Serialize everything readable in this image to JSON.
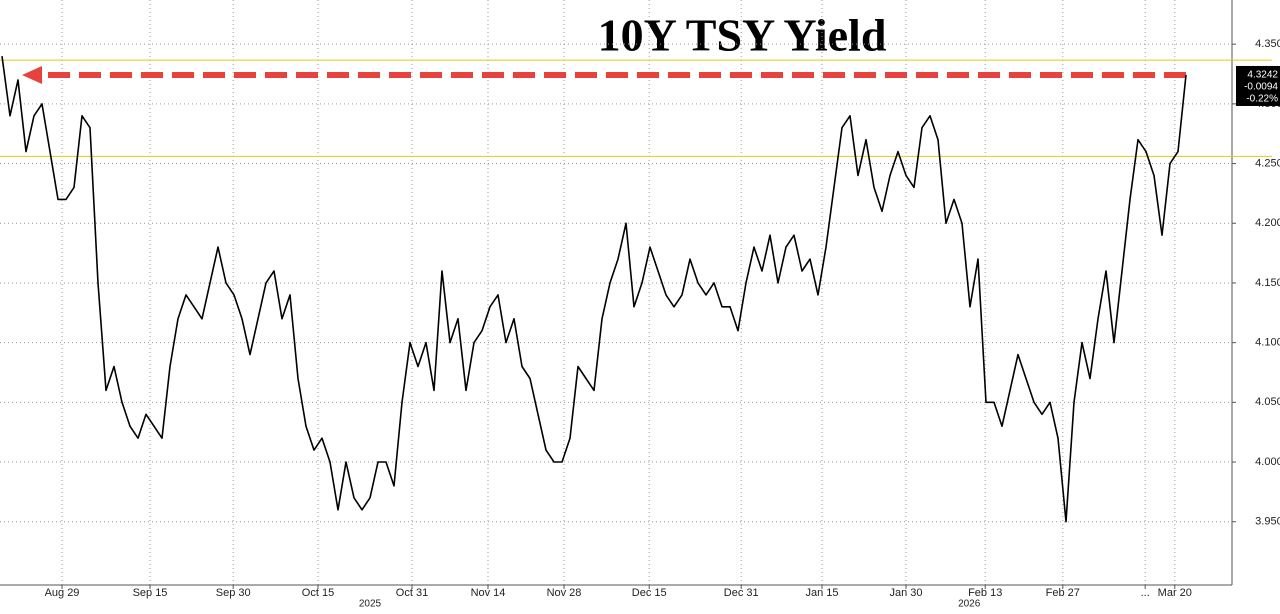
{
  "chart_data": {
    "type": "line",
    "title": "10Y TSY Yield",
    "color": "#000000",
    "values": [
      4.34,
      4.29,
      4.32,
      4.26,
      4.29,
      4.3,
      4.26,
      4.22,
      4.22,
      4.23,
      4.29,
      4.28,
      4.15,
      4.06,
      4.08,
      4.05,
      4.03,
      4.02,
      4.04,
      4.03,
      4.02,
      4.08,
      4.12,
      4.14,
      4.13,
      4.12,
      4.15,
      4.18,
      4.15,
      4.14,
      4.12,
      4.09,
      4.12,
      4.15,
      4.16,
      4.12,
      4.14,
      4.07,
      4.03,
      4.01,
      4.02,
      4.0,
      3.96,
      4.0,
      3.97,
      3.96,
      3.97,
      4.0,
      4.0,
      3.98,
      4.05,
      4.1,
      4.08,
      4.1,
      4.06,
      4.16,
      4.1,
      4.12,
      4.06,
      4.1,
      4.11,
      4.13,
      4.14,
      4.1,
      4.12,
      4.08,
      4.07,
      4.04,
      4.01,
      4.0,
      4.0,
      4.02,
      4.08,
      4.07,
      4.06,
      4.12,
      4.15,
      4.17,
      4.2,
      4.13,
      4.15,
      4.18,
      4.16,
      4.14,
      4.13,
      4.14,
      4.17,
      4.15,
      4.14,
      4.15,
      4.13,
      4.13,
      4.11,
      4.15,
      4.18,
      4.16,
      4.19,
      4.15,
      4.18,
      4.19,
      4.16,
      4.17,
      4.14,
      4.18,
      4.23,
      4.28,
      4.29,
      4.24,
      4.27,
      4.23,
      4.21,
      4.24,
      4.26,
      4.24,
      4.23,
      4.28,
      4.29,
      4.27,
      4.2,
      4.22,
      4.2,
      4.13,
      4.17,
      4.05,
      4.05,
      4.03,
      4.06,
      4.09,
      4.07,
      4.05,
      4.04,
      4.05,
      4.02,
      3.95,
      4.05,
      4.1,
      4.07,
      4.12,
      4.16,
      4.1,
      4.16,
      4.22,
      4.27,
      4.26,
      4.24,
      4.19,
      4.25,
      4.26,
      4.3242
    ],
    "xlim": [
      -0.25,
      153.75
    ],
    "xticks": [
      {
        "value": 7.5,
        "label": "Aug 29"
      },
      {
        "value": 18.5,
        "label": "Sep 15"
      },
      {
        "value": 28.9,
        "label": "Sep 30"
      },
      {
        "value": 39.5,
        "label": "Oct 15"
      },
      {
        "value": 51.25,
        "label": "Oct 31"
      },
      {
        "value": 60.75,
        "label": "Nov 14"
      },
      {
        "value": 70.25,
        "label": "Nov 28"
      },
      {
        "value": 80.9,
        "label": "Dec 15"
      },
      {
        "value": 92.4,
        "label": "Dec 31"
      },
      {
        "value": 102.5,
        "label": "Jan 15"
      },
      {
        "value": 113,
        "label": "Jan 30"
      },
      {
        "value": 122.9,
        "label": "Feb 13"
      },
      {
        "value": 132.6,
        "label": "Feb 27"
      },
      {
        "value": 142.9,
        "label": "..."
      },
      {
        "value": 146.6,
        "label": "Mar 20"
      }
    ],
    "year_labels": [
      {
        "value": 46,
        "label": "2025"
      },
      {
        "value": 120.9,
        "label": "2026"
      }
    ],
    "ylim": [
      3.897,
      4.387
    ],
    "yticks": [
      {
        "value": 3.95,
        "label": "3.9500"
      },
      {
        "value": 4.0,
        "label": "4.0000"
      },
      {
        "value": 4.05,
        "label": "4.0500"
      },
      {
        "value": 4.1,
        "label": "4.1000"
      },
      {
        "value": 4.15,
        "label": "4.1500"
      },
      {
        "value": 4.2,
        "label": "4.2000"
      },
      {
        "value": 4.25,
        "label": "4.2500"
      },
      {
        "value": 4.3,
        "label": "4.3000"
      },
      {
        "value": 4.35,
        "label": "4.3500"
      }
    ],
    "grid": true,
    "reference_lines": [
      {
        "value": 4.3366,
        "color": "#e6c619"
      },
      {
        "value": 4.256,
        "color": "#e6c619"
      }
    ],
    "arrow": {
      "value": 4.3242,
      "from": 148,
      "to": 2.5,
      "color": "#e8423f"
    },
    "last_box": [
      4.3242,
      -0.0094,
      {
        "value": -0.22,
        "label": "-0.22%"
      }
    ]
  }
}
